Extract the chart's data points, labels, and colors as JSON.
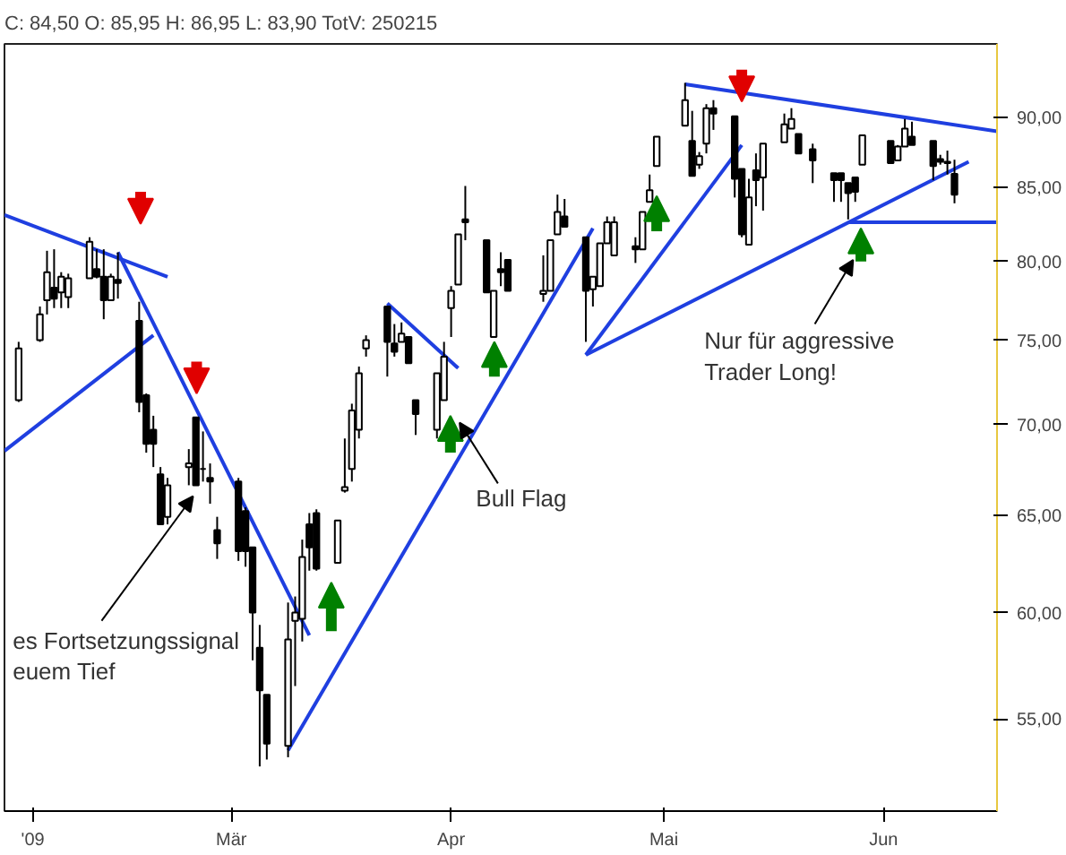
{
  "chart_data": {
    "type": "candlestick",
    "title": "C: 84,50 O: 85,95 H: 86,95 L: 83,90 TotV: 250215",
    "x": [
      "2009-01-30",
      "2009-02-02",
      "2009-02-03",
      "2009-02-04",
      "2009-02-05",
      "2009-02-06",
      "2009-02-09",
      "2009-02-10",
      "2009-02-11",
      "2009-02-12",
      "2009-02-13",
      "2009-02-16",
      "2009-02-17",
      "2009-02-18",
      "2009-02-19",
      "2009-02-20",
      "2009-02-23",
      "2009-02-24",
      "2009-02-25",
      "2009-02-26",
      "2009-02-27",
      "2009-03-02",
      "2009-03-03",
      "2009-03-04",
      "2009-03-05",
      "2009-03-06",
      "2009-03-09",
      "2009-03-10",
      "2009-03-11",
      "2009-03-12",
      "2009-03-13",
      "2009-03-16",
      "2009-03-17",
      "2009-03-18",
      "2009-03-19",
      "2009-03-20",
      "2009-03-23",
      "2009-03-24",
      "2009-03-25",
      "2009-03-26",
      "2009-03-27",
      "2009-03-30",
      "2009-03-31",
      "2009-04-01",
      "2009-04-02",
      "2009-04-03",
      "2009-04-06",
      "2009-04-07",
      "2009-04-08",
      "2009-04-09",
      "2009-04-14",
      "2009-04-15",
      "2009-04-16",
      "2009-04-17",
      "2009-04-20",
      "2009-04-21",
      "2009-04-22",
      "2009-04-23",
      "2009-04-24",
      "2009-04-27",
      "2009-04-28",
      "2009-04-29",
      "2009-04-30",
      "2009-05-04",
      "2009-05-05",
      "2009-05-06",
      "2009-05-07",
      "2009-05-08",
      "2009-05-11",
      "2009-05-12",
      "2009-05-13",
      "2009-05-14",
      "2009-05-15",
      "2009-05-18",
      "2009-05-19",
      "2009-05-20",
      "2009-05-22",
      "2009-05-25",
      "2009-05-26",
      "2009-05-27",
      "2009-05-28",
      "2009-05-29",
      "2009-06-02",
      "2009-06-03",
      "2009-06-04",
      "2009-06-05",
      "2009-06-08",
      "2009-06-09",
      "2009-06-10",
      "2009-06-11"
    ],
    "ohlc": [
      [
        71.4,
        74.9,
        71.3,
        74.5
      ],
      [
        75.0,
        77.1,
        74.9,
        76.6
      ],
      [
        77.5,
        80.7,
        76.6,
        79.3
      ],
      [
        78.3,
        80.8,
        77.0,
        77.6
      ],
      [
        78.0,
        79.3,
        77.0,
        79.0
      ],
      [
        77.7,
        79.2,
        77.0,
        78.9
      ],
      [
        78.9,
        81.6,
        78.9,
        81.3
      ],
      [
        79.5,
        80.8,
        78.9,
        79.0
      ],
      [
        79.0,
        80.8,
        76.3,
        77.5
      ],
      [
        77.5,
        79.2,
        77.5,
        79.0
      ],
      [
        78.8,
        80.6,
        77.6,
        78.6
      ],
      [
        76.2,
        77.4,
        70.7,
        71.3
      ],
      [
        71.7,
        71.8,
        68.4,
        68.9
      ],
      [
        69.7,
        70.5,
        67.6,
        68.9
      ],
      [
        67.2,
        67.6,
        64.5,
        64.5
      ],
      [
        64.9,
        67.0,
        64.5,
        66.6
      ],
      [
        67.6,
        68.6,
        66.6,
        67.8
      ],
      [
        70.4,
        70.4,
        66.6,
        66.6
      ],
      [
        67.5,
        69.6,
        66.8,
        67.5
      ],
      [
        67.0,
        67.8,
        65.6,
        66.8
      ],
      [
        64.2,
        64.9,
        62.7,
        63.5
      ],
      [
        66.8,
        67.0,
        62.6,
        63.1
      ],
      [
        65.2,
        65.4,
        62.3,
        63.1
      ],
      [
        63.3,
        63.3,
        57.7,
        60.0
      ],
      [
        58.3,
        59.4,
        52.9,
        56.3
      ],
      [
        56.1,
        56.1,
        53.2,
        53.9
      ],
      [
        53.8,
        60.5,
        53.3,
        58.7
      ],
      [
        59.6,
        60.8,
        56.5,
        60.0
      ],
      [
        59.7,
        63.7,
        58.6,
        62.8
      ],
      [
        64.5,
        65.1,
        62.1,
        63.3
      ],
      [
        65.1,
        65.3,
        62.1,
        62.2
      ],
      [
        62.5,
        64.7,
        62.5,
        64.7
      ],
      [
        66.3,
        69.2,
        66.2,
        66.5
      ],
      [
        67.5,
        71.2,
        66.8,
        70.8
      ],
      [
        69.7,
        73.4,
        69.2,
        73.0
      ],
      [
        74.5,
        75.3,
        74.0,
        75.0
      ],
      [
        77.1,
        77.1,
        72.8,
        74.9
      ],
      [
        74.8,
        76.0,
        74.0,
        74.3
      ],
      [
        74.9,
        76.1,
        74.9,
        75.4
      ],
      [
        75.2,
        75.2,
        73.6,
        73.6
      ],
      [
        71.4,
        71.4,
        69.4,
        70.6
      ],
      [
        69.7,
        73.0,
        69.2,
        73.0
      ],
      [
        71.4,
        74.9,
        71.4,
        74.0
      ],
      [
        77.0,
        78.4,
        75.2,
        78.1
      ],
      [
        78.5,
        81.8,
        78.5,
        81.8
      ],
      [
        82.8,
        85.1,
        81.4,
        82.6
      ],
      [
        81.4,
        81.4,
        78.0,
        78.0
      ],
      [
        75.2,
        78.1,
        75.2,
        78.1
      ],
      [
        79.5,
        80.6,
        78.4,
        79.3
      ],
      [
        80.1,
        80.1,
        78.1,
        78.1
      ],
      [
        77.9,
        80.4,
        77.4,
        78.1
      ],
      [
        78.1,
        81.4,
        78.1,
        81.4
      ],
      [
        81.8,
        84.5,
        81.8,
        83.3
      ],
      [
        83.0,
        84.2,
        82.3,
        82.3
      ],
      [
        81.6,
        81.6,
        74.9,
        78.1
      ],
      [
        78.2,
        79.0,
        77.1,
        79.0
      ],
      [
        78.4,
        81.2,
        78.4,
        81.2
      ],
      [
        81.2,
        83.0,
        81.2,
        82.6
      ],
      [
        80.4,
        83.0,
        80.4,
        82.6
      ],
      [
        81.0,
        81.6,
        79.9,
        80.8
      ],
      [
        80.8,
        83.3,
        80.8,
        83.3
      ],
      [
        84.0,
        85.9,
        84.0,
        84.8
      ],
      [
        86.5,
        88.6,
        86.5,
        88.6
      ],
      [
        89.4,
        92.6,
        89.4,
        91.3
      ],
      [
        88.3,
        90.5,
        85.8,
        85.8
      ],
      [
        86.6,
        87.5,
        86.3,
        87.2
      ],
      [
        88.1,
        91.0,
        87.4,
        90.7
      ],
      [
        90.7,
        91.3,
        89.1,
        90.3
      ],
      [
        90.1,
        90.1,
        84.3,
        85.6
      ],
      [
        86.3,
        86.3,
        81.6,
        81.8
      ],
      [
        81.1,
        85.6,
        81.1,
        84.3
      ],
      [
        86.2,
        87.4,
        83.7,
        85.5
      ],
      [
        85.7,
        88.1,
        83.4,
        88.1
      ],
      [
        88.2,
        90.3,
        88.2,
        89.5
      ],
      [
        89.2,
        90.7,
        89.2,
        89.9
      ],
      [
        88.8,
        88.8,
        87.4,
        87.4
      ],
      [
        87.7,
        88.1,
        85.3,
        86.9
      ],
      [
        86.0,
        86.0,
        84.0,
        85.5
      ],
      [
        86.0,
        86.0,
        84.0,
        85.5
      ],
      [
        85.3,
        85.3,
        82.8,
        84.6
      ],
      [
        85.7,
        85.7,
        84.0,
        84.7
      ],
      [
        86.6,
        88.7,
        86.6,
        88.7
      ],
      [
        88.3,
        88.3,
        86.7,
        86.7
      ],
      [
        86.9,
        88.0,
        86.9,
        87.9
      ],
      [
        87.9,
        89.9,
        87.9,
        89.2
      ],
      [
        88.6,
        89.7,
        88.0,
        88.0
      ],
      [
        88.3,
        88.3,
        85.5,
        86.5
      ],
      [
        87.0,
        87.3,
        86.6,
        86.8
      ],
      [
        86.8,
        87.6,
        85.9,
        86.7
      ],
      [
        85.95,
        86.95,
        83.9,
        84.5
      ]
    ],
    "series": [
      {
        "type": "line",
        "color": "#1f3fe0",
        "x": [
          "2009-01-28",
          "2009-02-20"
        ],
        "values": [
          83.1,
          79.0
        ]
      },
      {
        "type": "line",
        "color": "#1f3fe0",
        "x": [
          "2009-01-28",
          "2009-02-18"
        ],
        "values": [
          68.5,
          75.3
        ]
      },
      {
        "type": "line",
        "color": "#1f3fe0",
        "x": [
          "2009-02-13",
          "2009-03-12"
        ],
        "values": [
          80.6,
          58.9
        ]
      },
      {
        "type": "line",
        "color": "#1f3fe0",
        "x": [
          "2009-03-09",
          "2009-04-21"
        ],
        "values": [
          53.6,
          82.2
        ]
      },
      {
        "type": "line",
        "color": "#1f3fe0",
        "x": [
          "2009-03-23",
          "2009-04-02"
        ],
        "values": [
          77.3,
          73.3
        ]
      },
      {
        "type": "line",
        "color": "#1f3fe0",
        "x": [
          "2009-04-20",
          "2009-05-12"
        ],
        "values": [
          74.1,
          88.0
        ]
      },
      {
        "type": "line",
        "color": "#1f3fe0",
        "x": [
          "2009-04-20",
          "2009-06-13"
        ],
        "values": [
          74.1,
          86.8
        ]
      },
      {
        "type": "line",
        "color": "#1f3fe0",
        "x": [
          "2009-05-04",
          "2009-06-17"
        ],
        "values": [
          92.5,
          89.0
        ]
      },
      {
        "type": "line",
        "color": "#1f3fe0",
        "x": [
          "2009-05-27",
          "2009-06-17"
        ],
        "values": [
          82.6,
          82.6
        ]
      }
    ],
    "annotations": [
      "Bull Flag",
      "Nur für aggressive\nTrader Long!",
      "es Fortsetzungssignal\neuem Tief"
    ],
    "log": true,
    "xlim": [
      "2009-01-28",
      "2009-06-17"
    ],
    "xticks": [
      {
        "value": "2009-02-01",
        "label": "'09"
      },
      {
        "value": "2009-03-01",
        "label": "Mär"
      },
      {
        "value": "2009-04-01",
        "label": "Apr"
      },
      {
        "value": "2009-05-01",
        "label": "Mai"
      },
      {
        "value": "2009-06-01",
        "label": "Jun"
      }
    ],
    "ylim": [
      51.0,
      95.6
    ],
    "yticks": [
      {
        "value": 55,
        "label": "55,00"
      },
      {
        "value": 60,
        "label": "60,00"
      },
      {
        "value": 65,
        "label": "65,00"
      },
      {
        "value": 70,
        "label": "70,00"
      },
      {
        "value": 75,
        "label": "75,00"
      },
      {
        "value": 80,
        "label": "80,00"
      },
      {
        "value": 85,
        "label": "85,00"
      },
      {
        "value": 90,
        "label": "90,00"
      }
    ]
  }
}
